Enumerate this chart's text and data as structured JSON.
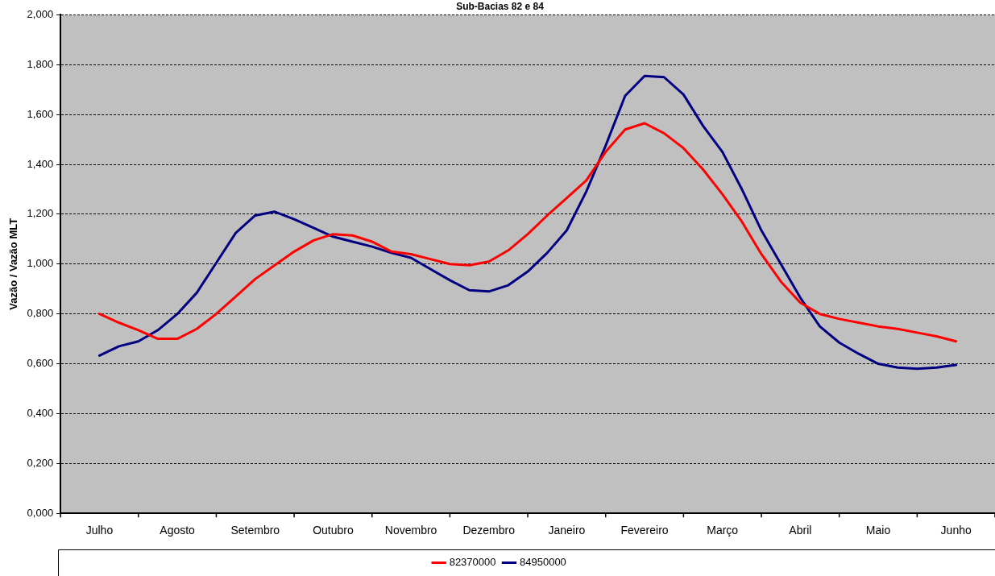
{
  "chart_data": {
    "type": "line",
    "title": "Sub-Bacias 82 e 84",
    "ylabel": "Vazão / Vazão MLT",
    "categories": [
      "Julho",
      null,
      null,
      null,
      "Agosto",
      null,
      null,
      null,
      "Setembro",
      null,
      null,
      null,
      "Outubro",
      null,
      null,
      null,
      "Novembro",
      null,
      null,
      null,
      "Dezembro",
      null,
      null,
      null,
      "Janeiro",
      null,
      null,
      null,
      "Fevereiro",
      null,
      null,
      null,
      "Março",
      null,
      null,
      null,
      "Abril",
      null,
      null,
      null,
      "Maio",
      null,
      null,
      null,
      "Junho"
    ],
    "series": [
      {
        "name": "82370000",
        "color": "#ff0000",
        "values": [
          0.8,
          0.765,
          0.735,
          0.7,
          0.7,
          0.74,
          0.8,
          0.87,
          0.94,
          0.995,
          1.05,
          1.095,
          1.12,
          1.115,
          1.09,
          1.05,
          1.04,
          1.02,
          1.0,
          0.995,
          1.01,
          1.055,
          1.12,
          1.195,
          1.265,
          1.335,
          1.45,
          1.54,
          1.565,
          1.525,
          1.465,
          1.38,
          1.28,
          1.17,
          1.04,
          0.93,
          0.845,
          0.8,
          0.78,
          0.765,
          0.75,
          0.74,
          0.725,
          0.71,
          0.69
        ]
      },
      {
        "name": "84950000",
        "color": "#000080",
        "values": [
          0.633,
          0.67,
          0.69,
          0.735,
          0.8,
          0.885,
          1.005,
          1.125,
          1.195,
          1.21,
          1.18,
          1.145,
          1.11,
          1.09,
          1.07,
          1.045,
          1.025,
          0.98,
          0.935,
          0.895,
          0.89,
          0.915,
          0.97,
          1.045,
          1.135,
          1.29,
          1.475,
          1.675,
          1.755,
          1.75,
          1.68,
          1.555,
          1.45,
          1.3,
          1.135,
          1.0,
          0.865,
          0.75,
          0.685,
          0.64,
          0.6,
          0.585,
          0.58,
          0.585,
          0.595
        ]
      }
    ],
    "ylim": [
      0,
      2
    ],
    "yticks": [
      {
        "value": 0,
        "label": "0,000"
      },
      {
        "value": 0.2,
        "label": "0,200"
      },
      {
        "value": 0.4,
        "label": "0,400"
      },
      {
        "value": 0.6,
        "label": "0,600"
      },
      {
        "value": 0.8,
        "label": "0,800"
      },
      {
        "value": 1,
        "label": "1,000"
      },
      {
        "value": 1.2,
        "label": "1,200"
      },
      {
        "value": 1.4,
        "label": "1,400"
      },
      {
        "value": 1.6,
        "label": "1,600"
      },
      {
        "value": 1.8,
        "label": "1,800"
      },
      {
        "value": 2,
        "label": "2,000"
      }
    ],
    "grid": "y",
    "legend": "bottom",
    "marker": "none",
    "line_style": "solid"
  }
}
